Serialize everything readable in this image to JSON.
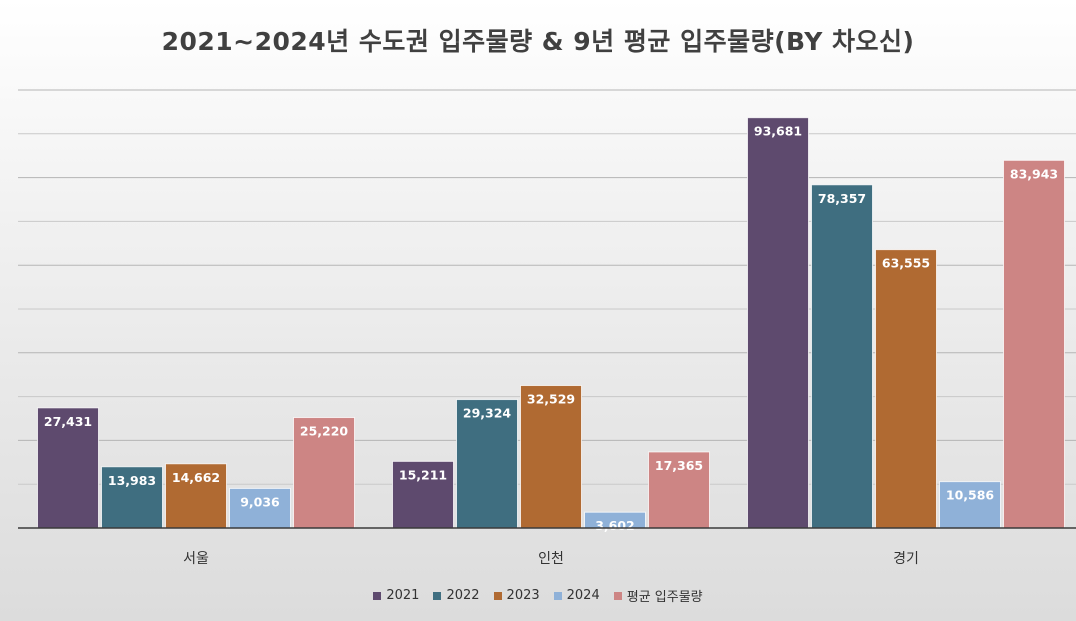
{
  "chart_data": {
    "type": "bar",
    "title": "2021~2024년 수도권 입주물량 & 9년 평균 입주물량(BY 차오신)",
    "categories": [
      "서울",
      "인천",
      "경기"
    ],
    "series": [
      {
        "name": "2021",
        "color": "#5e4a6e",
        "values": [
          27431,
          15211,
          93681
        ]
      },
      {
        "name": "2022",
        "color": "#3f6e80",
        "values": [
          13983,
          29324,
          78357
        ]
      },
      {
        "name": "2023",
        "color": "#b06a32",
        "values": [
          14662,
          32529,
          63555
        ]
      },
      {
        "name": "2024",
        "color": "#8fb1d8",
        "values": [
          9036,
          3602,
          10586
        ]
      },
      {
        "name": "평균 입주물량",
        "color": "#cd8584",
        "values": [
          25220,
          17365,
          83943
        ]
      }
    ],
    "value_labels": [
      [
        "27,431",
        "15,211",
        "93,681"
      ],
      [
        "13,983",
        "29,324",
        "78,357"
      ],
      [
        "14,662",
        "32,529",
        "63,555"
      ],
      [
        "9,036",
        "3,602",
        "10,586"
      ],
      [
        "25,220",
        "17,365",
        "83,943"
      ]
    ],
    "ylim": [
      0,
      100000
    ],
    "grid": true,
    "legend": "bottom"
  }
}
